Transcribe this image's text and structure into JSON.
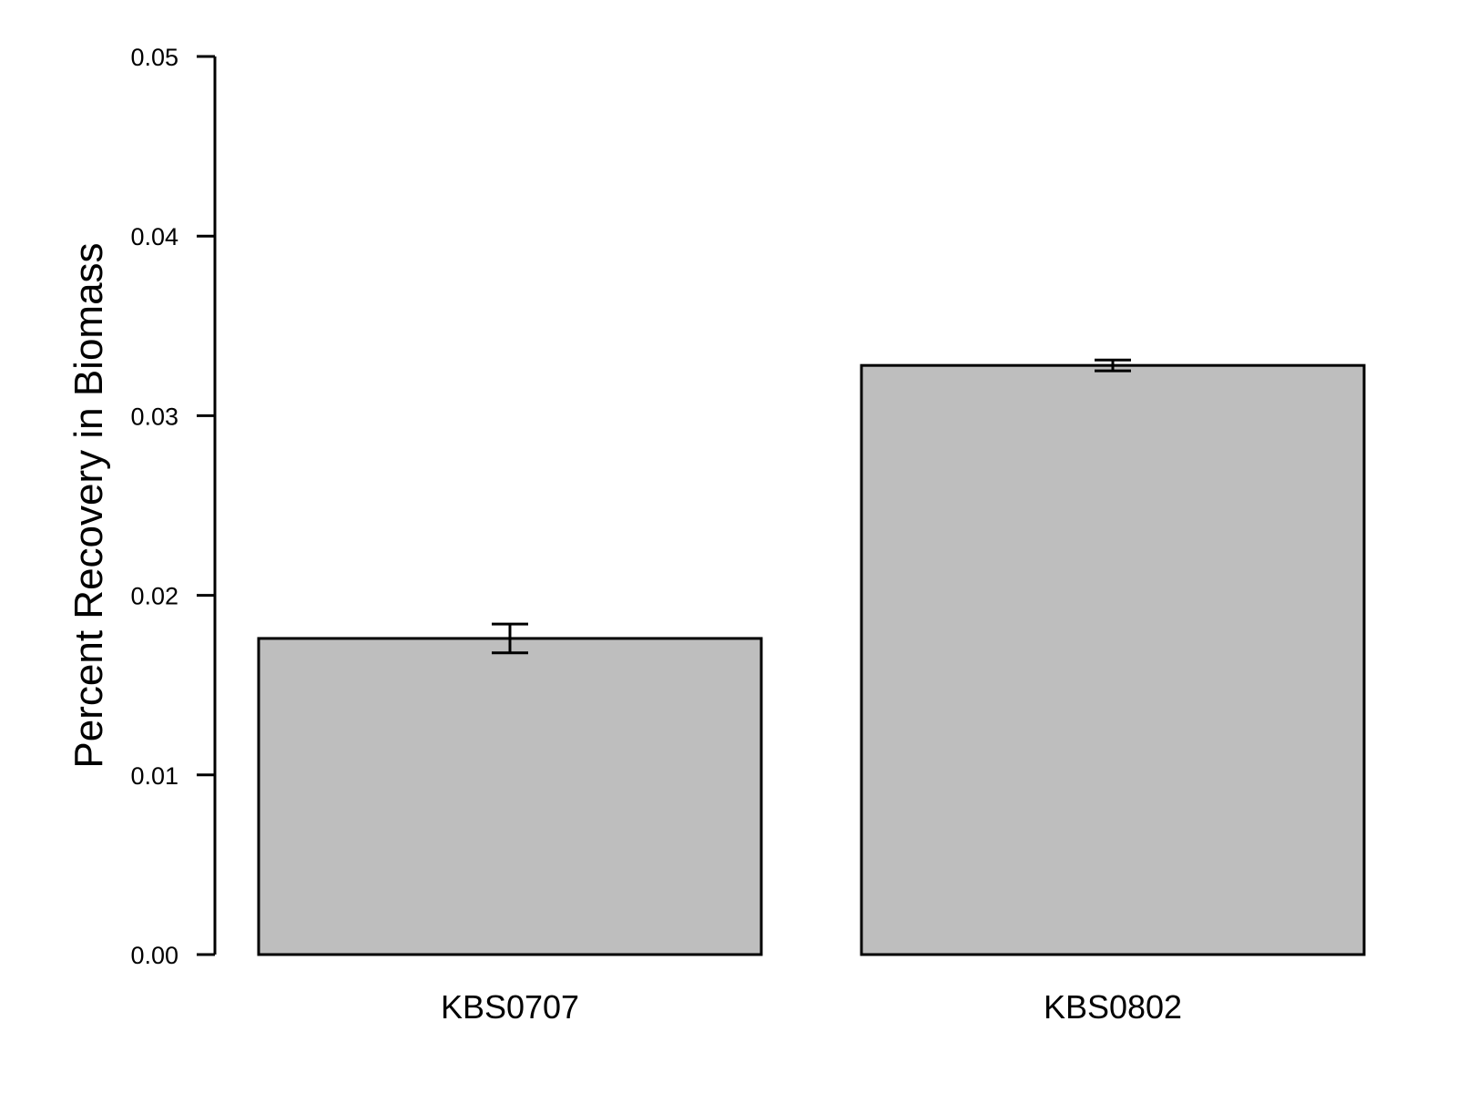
{
  "chart_data": {
    "type": "bar",
    "title": "",
    "xlabel": "",
    "ylabel": "Percent Recovery in Biomass",
    "categories": [
      "KBS0707",
      "KBS0802"
    ],
    "values": [
      0.0176,
      0.0328
    ],
    "error_low": [
      0.0168,
      0.0325
    ],
    "error_high": [
      0.0184,
      0.0331
    ],
    "ylim": [
      0,
      0.05
    ],
    "yticks": [
      0.0,
      0.01,
      0.02,
      0.03,
      0.04,
      0.05
    ],
    "ytick_labels": [
      "0.00",
      "0.01",
      "0.02",
      "0.03",
      "0.04",
      "0.05"
    ],
    "grid": false,
    "legend": "none",
    "bar_color": "#bebebe",
    "edge_color": "#000000"
  }
}
